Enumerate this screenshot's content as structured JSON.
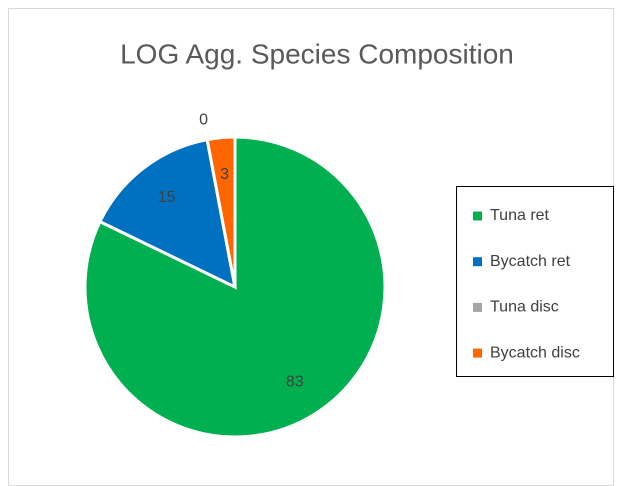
{
  "chart_data": {
    "type": "pie",
    "title": "LOG Agg. Species Composition",
    "categories": [
      "Tuna ret",
      "Bycatch ret",
      "Tuna disc",
      "Bycatch disc"
    ],
    "values": [
      83,
      15,
      0,
      3
    ],
    "colors": [
      "#00b050",
      "#0070c0",
      "#a5a5a5",
      "#ff6600"
    ],
    "legend": "right"
  }
}
